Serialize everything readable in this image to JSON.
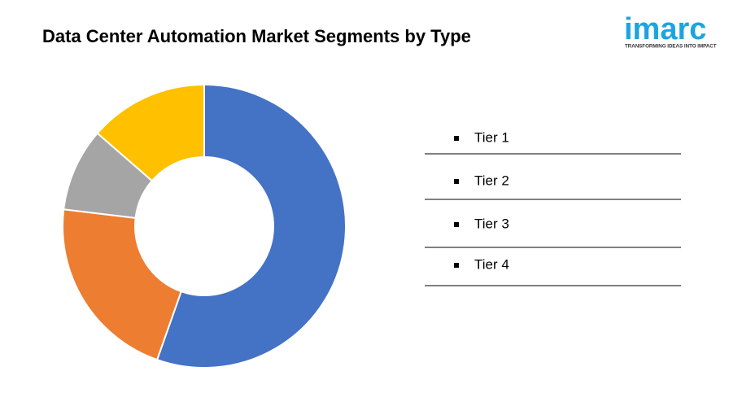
{
  "chart_data": {
    "type": "donut",
    "title": "Data Center Automation Market Segments by Type",
    "categories": [
      "Tier 1",
      "Tier 2",
      "Tier 3",
      "Tier 4"
    ],
    "values": [
      55.4,
      21.5,
      9.5,
      13.6
    ],
    "colors": [
      "#4472c4",
      "#ed7d31",
      "#a5a5a5",
      "#ffc000"
    ]
  },
  "logo": {
    "name": "imarc",
    "tagline": "TRANSFORMING IDEAS INTO IMPACT"
  }
}
